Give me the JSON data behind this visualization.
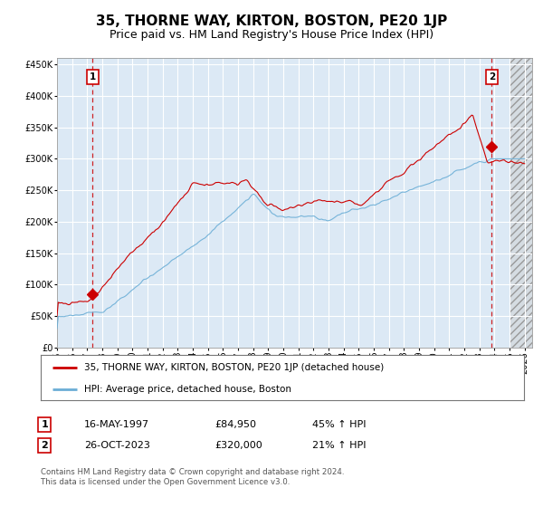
{
  "title": "35, THORNE WAY, KIRTON, BOSTON, PE20 1JP",
  "subtitle": "Price paid vs. HM Land Registry's House Price Index (HPI)",
  "ylim": [
    0,
    460000
  ],
  "xlim_start": 1995.0,
  "xlim_end": 2026.5,
  "plot_bg_color": "#dce9f5",
  "grid_color": "#ffffff",
  "hpi_color": "#6baed6",
  "price_color": "#cc0000",
  "sale1_date_num": 1997.37,
  "sale1_price": 84950,
  "sale2_date_num": 2023.82,
  "sale2_price": 320000,
  "legend_line1": "35, THORNE WAY, KIRTON, BOSTON, PE20 1JP (detached house)",
  "legend_line2": "HPI: Average price, detached house, Boston",
  "table_row1": [
    "1",
    "16-MAY-1997",
    "£84,950",
    "45% ↑ HPI"
  ],
  "table_row2": [
    "2",
    "26-OCT-2023",
    "£320,000",
    "21% ↑ HPI"
  ],
  "footnote": "Contains HM Land Registry data © Crown copyright and database right 2024.\nThis data is licensed under the Open Government Licence v3.0.",
  "title_fontsize": 11,
  "subtitle_fontsize": 9,
  "tick_fontsize": 7,
  "future_start": 2025.0,
  "hatch_color": "#bbbbbb"
}
